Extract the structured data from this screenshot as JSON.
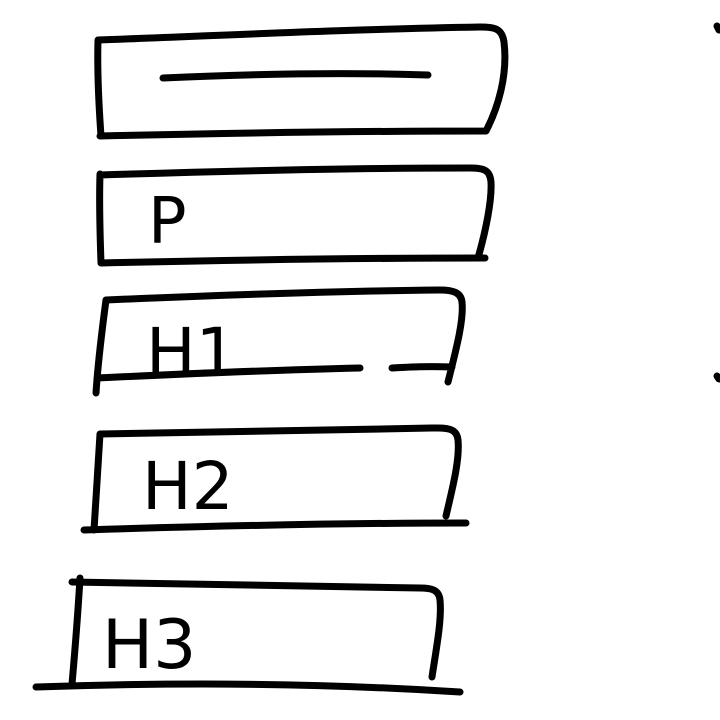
{
  "sketch": {
    "ink_color": "#000000",
    "background_color": "#ffffff",
    "blocks": [
      {
        "id": "line-block",
        "label": ""
      },
      {
        "id": "p-block",
        "label": "P"
      },
      {
        "id": "h1-block",
        "label": "H1"
      },
      {
        "id": "h2-block",
        "label": "H2"
      },
      {
        "id": "h3-block",
        "label": "H3"
      }
    ]
  }
}
